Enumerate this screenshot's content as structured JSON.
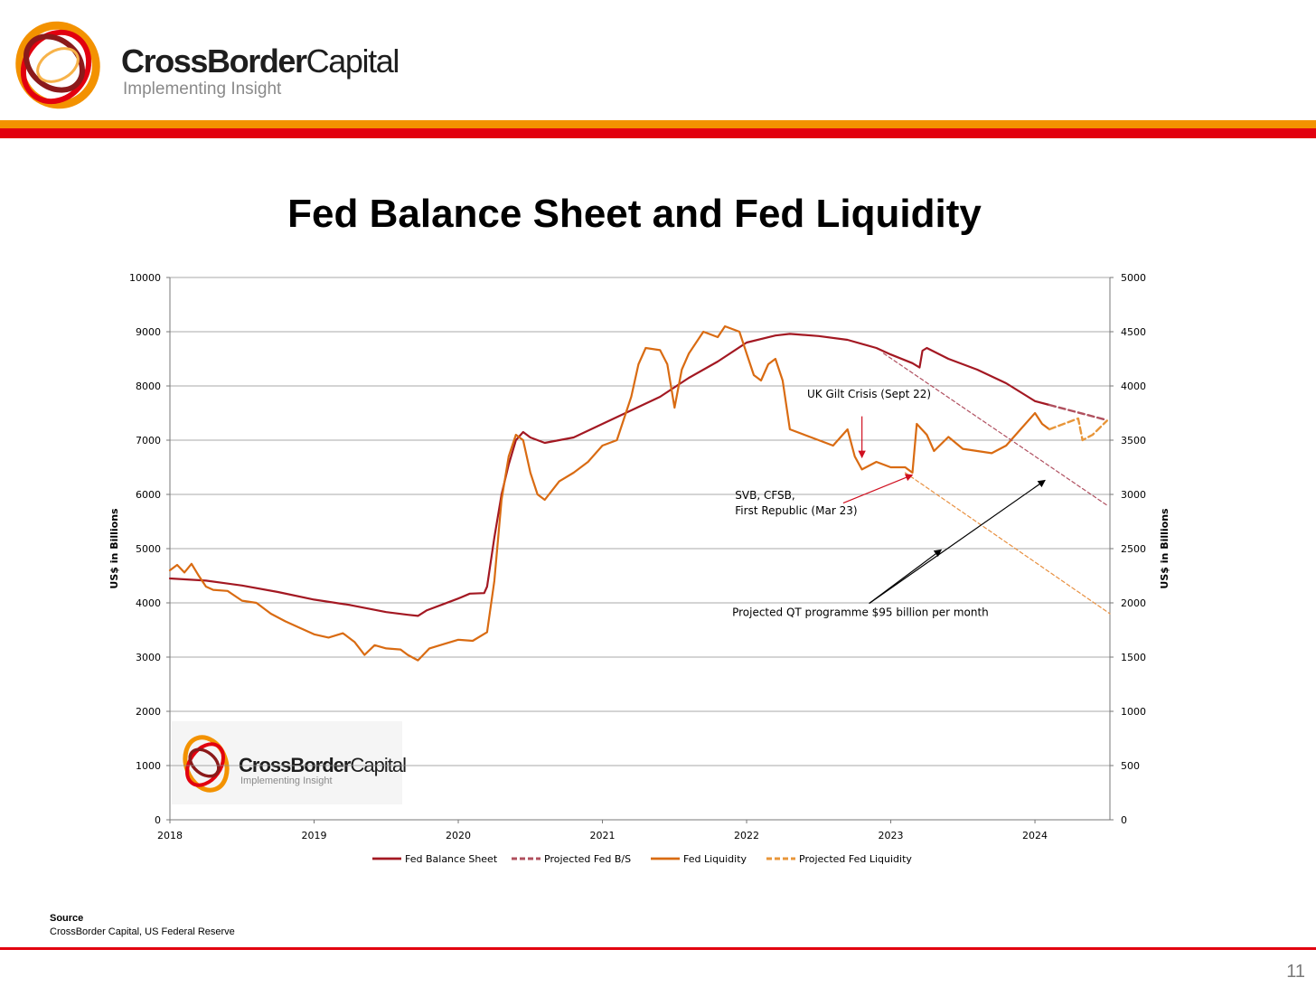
{
  "header": {
    "brand_bold": "CrossBorder",
    "brand_light": "Capital",
    "tagline": "Implementing Insight",
    "colors": {
      "orange": "#f39200",
      "red": "#e2000f",
      "dark_red": "#a31822"
    }
  },
  "slide": {
    "title": "Fed Balance Sheet and Fed Liquidity",
    "source_label": "Source",
    "source_text": "CrossBorder Capital, US Federal Reserve",
    "page_number": "11"
  },
  "chart_data": {
    "type": "line",
    "title": "",
    "ylabel_left": "US$ in Billions",
    "ylabel_right": "US$ in Billions",
    "x_range": [
      2018.0,
      2024.52
    ],
    "x_ticks": [
      "2018",
      "2019",
      "2020",
      "2021",
      "2022",
      "2023",
      "2024"
    ],
    "ylim_left": [
      0,
      10000
    ],
    "ylim_right": [
      0,
      5000
    ],
    "y_ticks_left": [
      "0",
      "1000",
      "2000",
      "3000",
      "4000",
      "5000",
      "6000",
      "7000",
      "8000",
      "9000",
      "10000"
    ],
    "y_ticks_right": [
      "0",
      "500",
      "1000",
      "1500",
      "2000",
      "2500",
      "3000",
      "3500",
      "4000",
      "4500",
      "5000"
    ],
    "grid": true,
    "legend_position": "bottom",
    "series": [
      {
        "name": "Fed Balance Sheet",
        "axis": "left",
        "color": "#a31822",
        "style": "solid",
        "points": [
          [
            2018.0,
            4450
          ],
          [
            2018.25,
            4410
          ],
          [
            2018.5,
            4320
          ],
          [
            2018.75,
            4200
          ],
          [
            2019.0,
            4060
          ],
          [
            2019.25,
            3960
          ],
          [
            2019.5,
            3830
          ],
          [
            2019.65,
            3780
          ],
          [
            2019.72,
            3760
          ],
          [
            2019.78,
            3860
          ],
          [
            2019.9,
            3980
          ],
          [
            2020.0,
            4080
          ],
          [
            2020.08,
            4170
          ],
          [
            2020.18,
            4180
          ],
          [
            2020.2,
            4300
          ],
          [
            2020.25,
            5200
          ],
          [
            2020.3,
            6000
          ],
          [
            2020.35,
            6550
          ],
          [
            2020.4,
            7000
          ],
          [
            2020.45,
            7150
          ],
          [
            2020.5,
            7050
          ],
          [
            2020.6,
            6950
          ],
          [
            2020.8,
            7050
          ],
          [
            2021.0,
            7300
          ],
          [
            2021.2,
            7550
          ],
          [
            2021.4,
            7800
          ],
          [
            2021.6,
            8150
          ],
          [
            2021.8,
            8450
          ],
          [
            2022.0,
            8800
          ],
          [
            2022.2,
            8930
          ],
          [
            2022.3,
            8960
          ],
          [
            2022.5,
            8920
          ],
          [
            2022.7,
            8850
          ],
          [
            2022.9,
            8700
          ],
          [
            2023.0,
            8580
          ],
          [
            2023.15,
            8420
          ],
          [
            2023.2,
            8340
          ],
          [
            2023.22,
            8650
          ],
          [
            2023.25,
            8700
          ],
          [
            2023.4,
            8500
          ],
          [
            2023.6,
            8300
          ],
          [
            2023.8,
            8050
          ],
          [
            2024.0,
            7720
          ],
          [
            2024.1,
            7650
          ]
        ]
      },
      {
        "name": "Projected Fed B/S",
        "axis": "left",
        "color": "#b0505e",
        "style": "dashed",
        "points": [
          [
            2024.1,
            7650
          ],
          [
            2024.5,
            7370
          ]
        ]
      },
      {
        "name": "Fed Liquidity",
        "axis": "right",
        "color": "#d96b12",
        "style": "solid",
        "points": [
          [
            2018.0,
            2300
          ],
          [
            2018.05,
            2350
          ],
          [
            2018.1,
            2280
          ],
          [
            2018.15,
            2360
          ],
          [
            2018.2,
            2250
          ],
          [
            2018.25,
            2150
          ],
          [
            2018.3,
            2120
          ],
          [
            2018.4,
            2110
          ],
          [
            2018.5,
            2020
          ],
          [
            2018.6,
            2000
          ],
          [
            2018.7,
            1900
          ],
          [
            2018.8,
            1830
          ],
          [
            2018.9,
            1770
          ],
          [
            2019.0,
            1710
          ],
          [
            2019.1,
            1680
          ],
          [
            2019.2,
            1720
          ],
          [
            2019.28,
            1640
          ],
          [
            2019.35,
            1520
          ],
          [
            2019.42,
            1610
          ],
          [
            2019.5,
            1580
          ],
          [
            2019.6,
            1570
          ],
          [
            2019.65,
            1520
          ],
          [
            2019.72,
            1470
          ],
          [
            2019.8,
            1580
          ],
          [
            2019.9,
            1620
          ],
          [
            2020.0,
            1660
          ],
          [
            2020.1,
            1650
          ],
          [
            2020.2,
            1730
          ],
          [
            2020.25,
            2200
          ],
          [
            2020.3,
            2950
          ],
          [
            2020.35,
            3350
          ],
          [
            2020.4,
            3550
          ],
          [
            2020.45,
            3500
          ],
          [
            2020.5,
            3200
          ],
          [
            2020.55,
            3000
          ],
          [
            2020.6,
            2950
          ],
          [
            2020.7,
            3120
          ],
          [
            2020.8,
            3200
          ],
          [
            2020.9,
            3300
          ],
          [
            2021.0,
            3450
          ],
          [
            2021.1,
            3500
          ],
          [
            2021.2,
            3900
          ],
          [
            2021.25,
            4200
          ],
          [
            2021.3,
            4350
          ],
          [
            2021.4,
            4330
          ],
          [
            2021.45,
            4200
          ],
          [
            2021.5,
            3800
          ],
          [
            2021.55,
            4150
          ],
          [
            2021.6,
            4300
          ],
          [
            2021.7,
            4500
          ],
          [
            2021.8,
            4450
          ],
          [
            2021.85,
            4550
          ],
          [
            2021.95,
            4500
          ],
          [
            2022.0,
            4300
          ],
          [
            2022.05,
            4100
          ],
          [
            2022.1,
            4050
          ],
          [
            2022.15,
            4200
          ],
          [
            2022.2,
            4250
          ],
          [
            2022.25,
            4050
          ],
          [
            2022.3,
            3600
          ],
          [
            2022.4,
            3550
          ],
          [
            2022.5,
            3500
          ],
          [
            2022.6,
            3450
          ],
          [
            2022.7,
            3600
          ],
          [
            2022.75,
            3350
          ],
          [
            2022.8,
            3230
          ],
          [
            2022.9,
            3300
          ],
          [
            2023.0,
            3250
          ],
          [
            2023.1,
            3250
          ],
          [
            2023.15,
            3200
          ],
          [
            2023.18,
            3650
          ],
          [
            2023.25,
            3550
          ],
          [
            2023.3,
            3400
          ],
          [
            2023.4,
            3530
          ],
          [
            2023.5,
            3420
          ],
          [
            2023.6,
            3400
          ],
          [
            2023.7,
            3380
          ],
          [
            2023.8,
            3450
          ],
          [
            2023.9,
            3600
          ],
          [
            2024.0,
            3750
          ],
          [
            2024.05,
            3650
          ],
          [
            2024.1,
            3600
          ]
        ]
      },
      {
        "name": "Projected Fed Liquidity",
        "axis": "right",
        "color": "#e8963a",
        "style": "dashed",
        "points": [
          [
            2024.1,
            3600
          ],
          [
            2024.3,
            3700
          ],
          [
            2024.33,
            3500
          ],
          [
            2024.4,
            3550
          ],
          [
            2024.5,
            3680
          ]
        ]
      },
      {
        "name": "",
        "axis": "left",
        "color": "#b05060",
        "style": "thin-dashed",
        "points": [
          [
            2022.95,
            8600
          ],
          [
            2024.5,
            5800
          ]
        ]
      },
      {
        "name": "",
        "axis": "right",
        "color": "#e89040",
        "style": "thin-dashed",
        "points": [
          [
            2023.1,
            3200
          ],
          [
            2024.52,
            1900
          ]
        ]
      }
    ],
    "annotations": [
      {
        "lines": [
          "UK Gilt Crisis (Sept 22)"
        ],
        "label_x": 2022.42,
        "label_y_right": 3890,
        "arrows": [
          {
            "from": [
              2022.8,
              3720
            ],
            "to": [
              2022.8,
              3340
            ],
            "color": "#d01020"
          }
        ]
      },
      {
        "lines": [
          "SVB, CFSB,",
          "First Republic (Mar 23)"
        ],
        "label_x": 2021.92,
        "label_y_right": 2960,
        "arrows": [
          {
            "from": [
              2022.67,
              2920
            ],
            "to": [
              2023.15,
              3180
            ],
            "color": "#d01020"
          }
        ]
      },
      {
        "lines": [
          "Projected QT programme $95 billion per month"
        ],
        "label_x": 2021.9,
        "label_y_right": 1880,
        "arrows": [
          {
            "from": [
              2022.85,
              1995
            ],
            "to": [
              2023.35,
              2490
            ],
            "color": "#000000"
          },
          {
            "from": [
              2022.85,
              1995
            ],
            "to": [
              2024.07,
              3130
            ],
            "color": "#000000"
          }
        ]
      }
    ]
  }
}
